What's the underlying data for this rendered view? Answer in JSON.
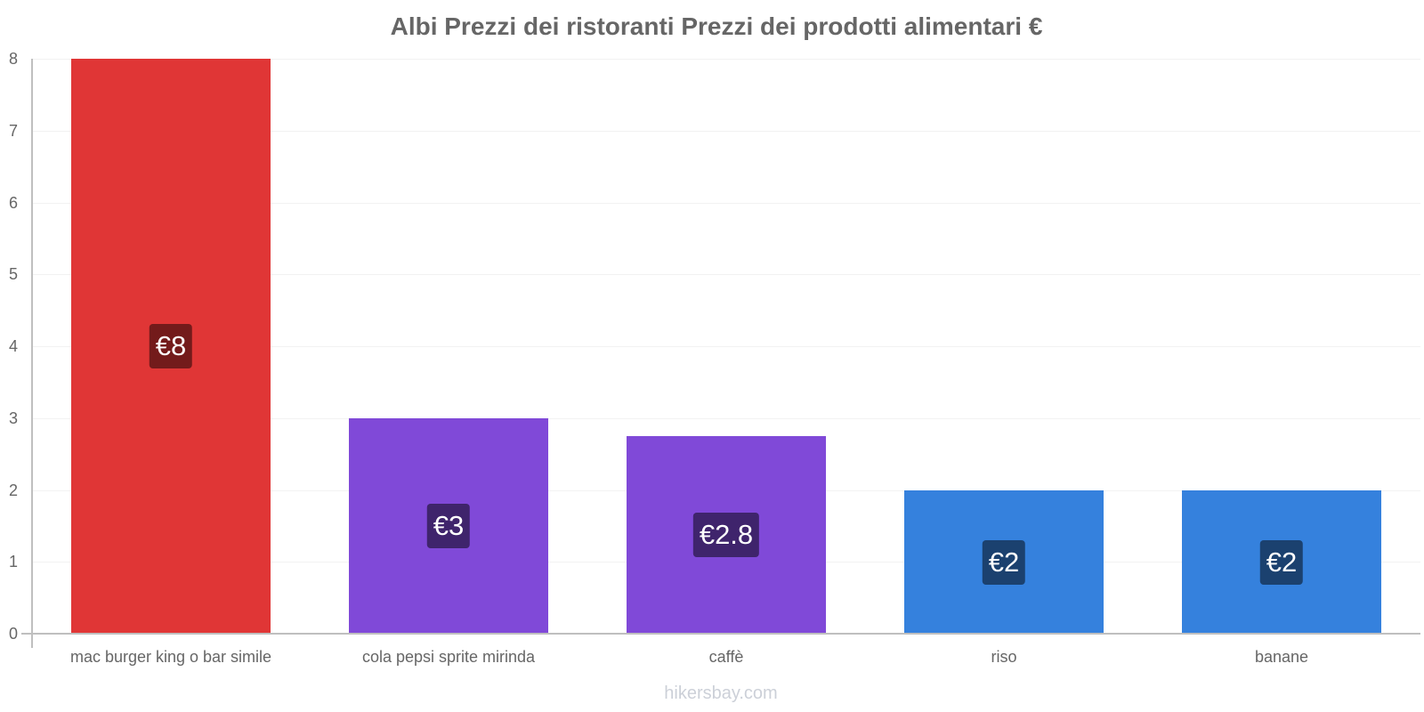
{
  "chart_data": {
    "type": "bar",
    "title": "Albi Prezzi dei ristoranti Prezzi dei prodotti alimentari €",
    "xlabel": "",
    "ylabel": "",
    "ylim": [
      0,
      8
    ],
    "yticks": [
      "0",
      "1",
      "2",
      "3",
      "4",
      "5",
      "6",
      "7",
      "8"
    ],
    "categories": [
      "mac burger king o bar simile",
      "cola pepsi sprite mirinda",
      "caffè",
      "riso",
      "banane"
    ],
    "values": [
      8,
      3,
      2.75,
      2,
      2
    ],
    "value_labels": [
      "€8",
      "€3",
      "€2.8",
      "€2",
      "€2"
    ],
    "bar_colors": [
      "#e03636",
      "#8049d8",
      "#8049d8",
      "#3581dd",
      "#3581dd"
    ],
    "label_colors": [
      "#731b1b",
      "#3f246c",
      "#3f246c",
      "#1b416f",
      "#1b416f"
    ],
    "grid": true,
    "legend": null
  },
  "watermark": "hikersbay.com"
}
